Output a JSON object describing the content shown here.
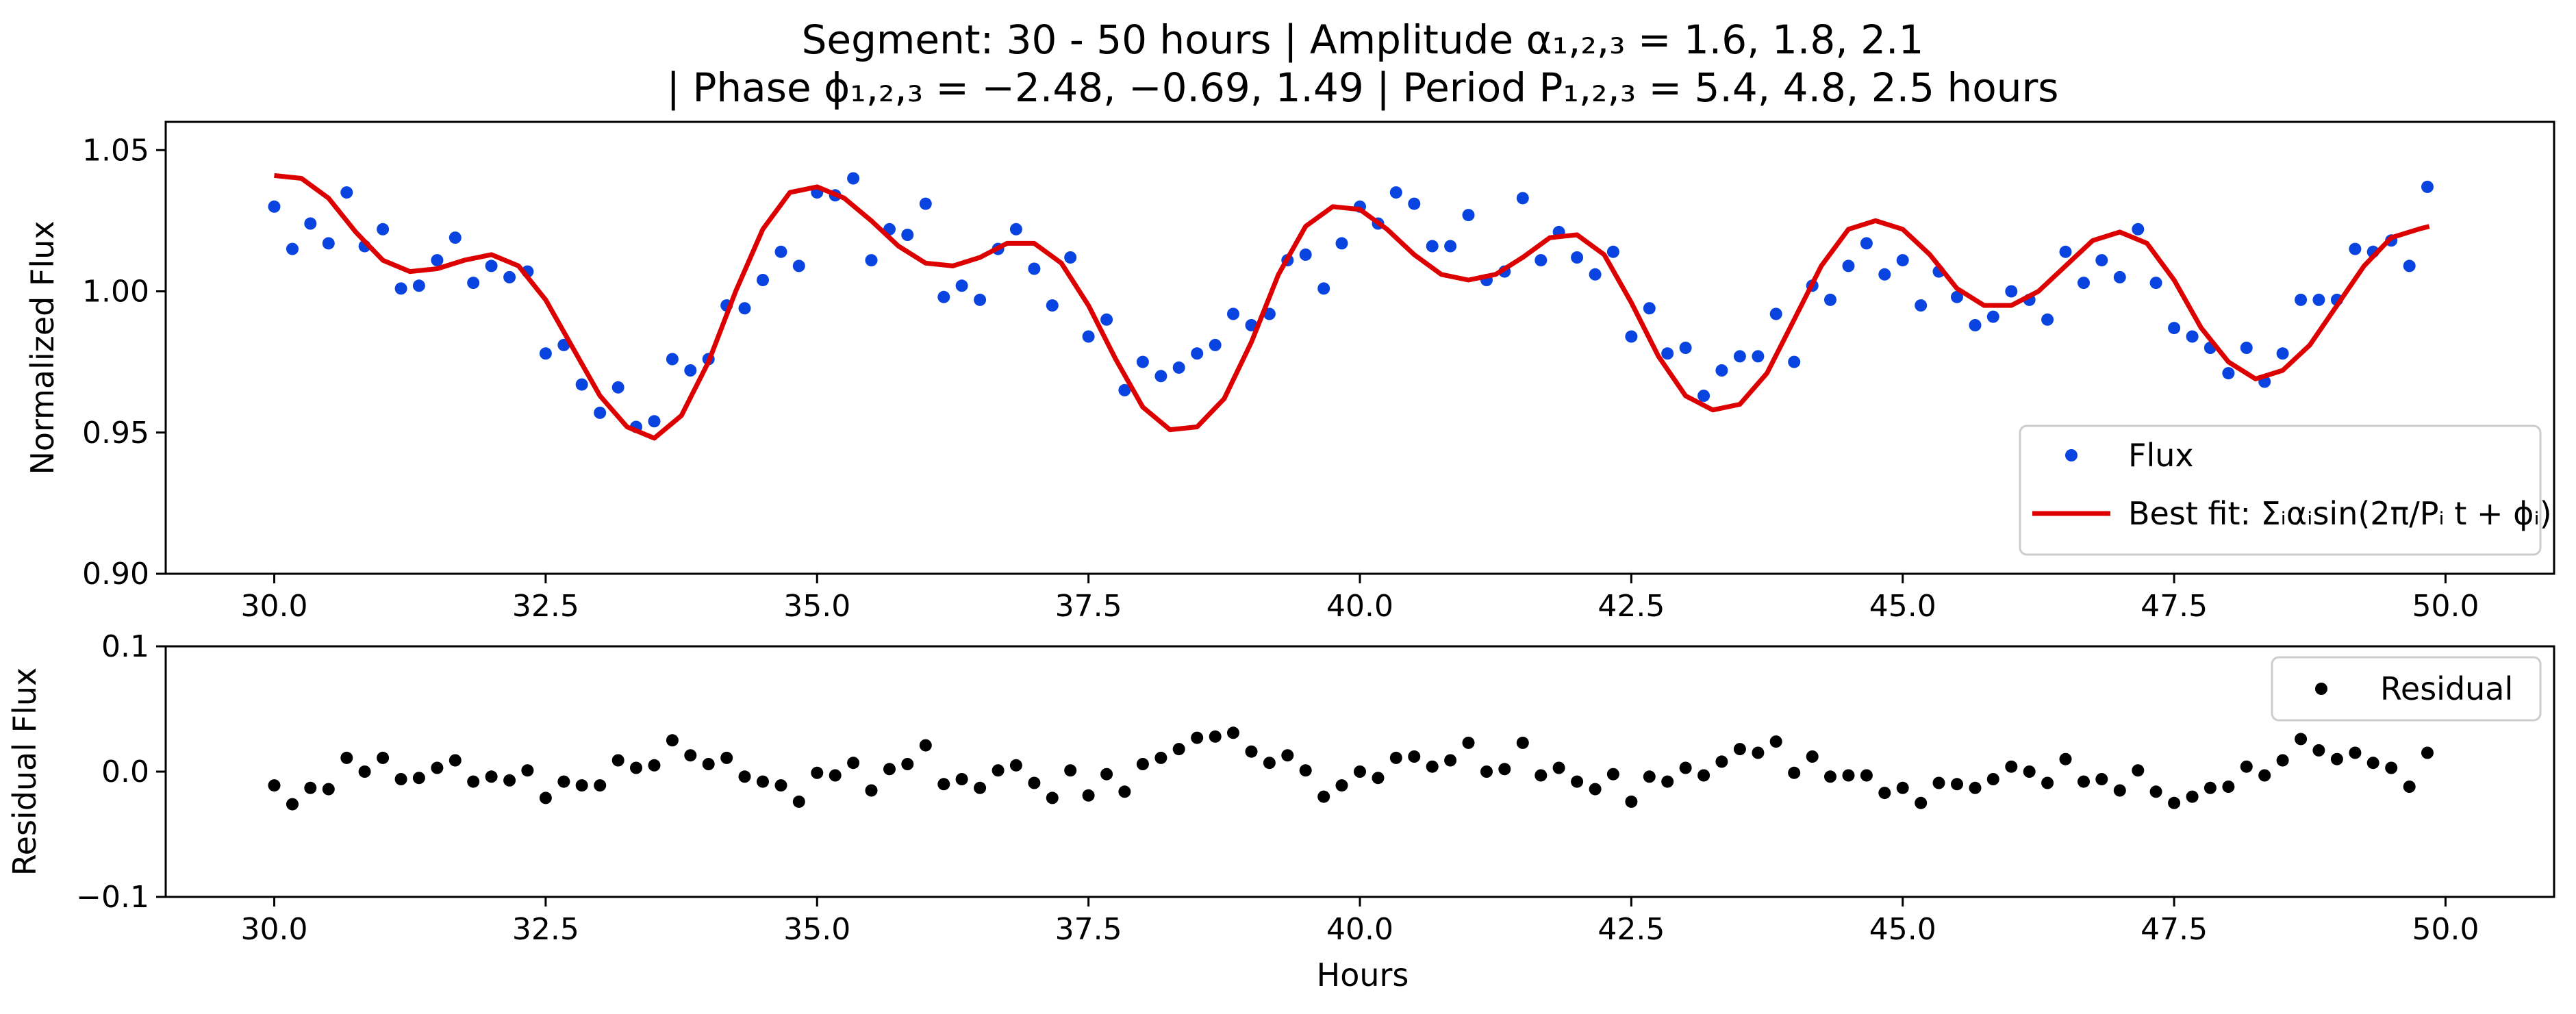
{
  "title_line1": "Segment: 30 - 50 hours  |  Amplitude α₁,₂,₃ = 1.6, 1.8, 2.1",
  "title_line2": "|  Phase ϕ₁,₂,₃ = −2.48, −0.69, 1.49  |  Period P₁,₂,₃ = 5.4, 4.8, 2.5 hours",
  "colors": {
    "flux": "#0a44e0",
    "fit": "#dd0000",
    "residual": "#000000"
  },
  "chart_data": [
    {
      "type": "scatter",
      "ylabel": "Normalized Flux",
      "xlabel": "",
      "xlim": [
        29.0,
        51.0
      ],
      "ylim": [
        0.9,
        1.06
      ],
      "xticks": [
        30.0,
        32.5,
        35.0,
        37.5,
        40.0,
        42.5,
        45.0,
        47.5,
        50.0
      ],
      "xtick_labels": [
        "30.0",
        "32.5",
        "35.0",
        "37.5",
        "40.0",
        "42.5",
        "45.0",
        "47.5",
        "50.0"
      ],
      "yticks": [
        0.9,
        0.95,
        1.0,
        1.05
      ],
      "ytick_labels": [
        "0.90",
        "0.95",
        "1.00",
        "1.05"
      ],
      "grid": false,
      "legend_placement": "lower-right",
      "series": [
        {
          "name": "Flux",
          "kind": "points",
          "x": [
            30.0,
            30.167,
            30.333,
            30.5,
            30.667,
            30.833,
            31.0,
            31.167,
            31.333,
            31.5,
            31.667,
            31.833,
            32.0,
            32.167,
            32.333,
            32.5,
            32.667,
            32.833,
            33.0,
            33.167,
            33.333,
            33.5,
            33.667,
            33.833,
            34.0,
            34.167,
            34.333,
            34.5,
            34.667,
            34.833,
            35.0,
            35.167,
            35.333,
            35.5,
            35.667,
            35.833,
            36.0,
            36.167,
            36.333,
            36.5,
            36.667,
            36.833,
            37.0,
            37.167,
            37.333,
            37.5,
            37.667,
            37.833,
            38.0,
            38.167,
            38.333,
            38.5,
            38.667,
            38.833,
            39.0,
            39.167,
            39.333,
            39.5,
            39.667,
            39.833,
            40.0,
            40.167,
            40.333,
            40.5,
            40.667,
            40.833,
            41.0,
            41.167,
            41.333,
            41.5,
            41.667,
            41.833,
            42.0,
            42.167,
            42.333,
            42.5,
            42.667,
            42.833,
            43.0,
            43.167,
            43.333,
            43.5,
            43.667,
            43.833,
            44.0,
            44.167,
            44.333,
            44.5,
            44.667,
            44.833,
            45.0,
            45.167,
            45.333,
            45.5,
            45.667,
            45.833,
            46.0,
            46.167,
            46.333,
            46.5,
            46.667,
            46.833,
            47.0,
            47.167,
            47.333,
            47.5,
            47.667,
            47.833,
            48.0,
            48.167,
            48.333,
            48.5,
            48.667,
            48.833,
            49.0,
            49.167,
            49.333,
            49.5,
            49.667,
            49.833
          ],
          "y": [
            1.03,
            1.015,
            1.024,
            1.017,
            1.035,
            1.016,
            1.022,
            1.001,
            1.002,
            1.011,
            1.019,
            1.003,
            1.009,
            1.005,
            1.007,
            0.978,
            0.981,
            0.967,
            0.957,
            0.966,
            0.952,
            0.954,
            0.976,
            0.972,
            0.976,
            0.995,
            0.994,
            1.004,
            1.014,
            1.009,
            1.035,
            1.034,
            1.04,
            1.011,
            1.022,
            1.02,
            1.031,
            0.998,
            1.002,
            0.997,
            1.015,
            1.022,
            1.008,
            0.995,
            1.012,
            0.984,
            0.99,
            0.965,
            0.975,
            0.97,
            0.973,
            0.978,
            0.981,
            0.992,
            0.988,
            0.992,
            1.011,
            1.013,
            1.001,
            1.017,
            1.03,
            1.024,
            1.035,
            1.031,
            1.016,
            1.016,
            1.027,
            1.004,
            1.007,
            1.033,
            1.011,
            1.021,
            1.012,
            1.006,
            1.014,
            0.984,
            0.994,
            0.978,
            0.98,
            0.963,
            0.972,
            0.977,
            0.977,
            0.992,
            0.975,
            1.002,
            0.997,
            1.009,
            1.017,
            1.006,
            1.011,
            0.995,
            1.007,
            0.998,
            0.988,
            0.991,
            1.0,
            0.997,
            0.99,
            1.014,
            1.003,
            1.011,
            1.005,
            1.022,
            1.003,
            0.987,
            0.984,
            0.98,
            0.971,
            0.98,
            0.968,
            0.978,
            0.997,
            0.997,
            0.997,
            1.015,
            1.014,
            1.018,
            1.009,
            1.037
          ]
        },
        {
          "name": "Best fit: Σᵢαᵢsin(2π/Pᵢ t + ϕᵢ)",
          "kind": "line",
          "x": [
            30.0,
            30.25,
            30.5,
            30.75,
            31.0,
            31.25,
            31.5,
            31.75,
            32.0,
            32.25,
            32.5,
            32.75,
            33.0,
            33.25,
            33.5,
            33.75,
            34.0,
            34.25,
            34.5,
            34.75,
            35.0,
            35.25,
            35.5,
            35.75,
            36.0,
            36.25,
            36.5,
            36.75,
            37.0,
            37.25,
            37.5,
            37.75,
            38.0,
            38.25,
            38.5,
            38.75,
            39.0,
            39.25,
            39.5,
            39.75,
            40.0,
            40.25,
            40.5,
            40.75,
            41.0,
            41.25,
            41.5,
            41.75,
            42.0,
            42.25,
            42.5,
            42.75,
            43.0,
            43.25,
            43.5,
            43.75,
            44.0,
            44.25,
            44.5,
            44.75,
            45.0,
            45.25,
            45.5,
            45.75,
            46.0,
            46.25,
            46.5,
            46.75,
            47.0,
            47.25,
            47.5,
            47.75,
            48.0,
            48.25,
            48.5,
            48.75,
            49.0,
            49.25,
            49.5,
            49.75,
            49.85
          ],
          "y": [
            1.041,
            1.04,
            1.033,
            1.021,
            1.011,
            1.007,
            1.008,
            1.011,
            1.013,
            1.009,
            0.997,
            0.98,
            0.963,
            0.952,
            0.948,
            0.956,
            0.975,
            1.0,
            1.022,
            1.035,
            1.037,
            1.033,
            1.025,
            1.016,
            1.01,
            1.009,
            1.012,
            1.017,
            1.017,
            1.01,
            0.995,
            0.976,
            0.959,
            0.951,
            0.952,
            0.962,
            0.982,
            1.006,
            1.023,
            1.03,
            1.029,
            1.022,
            1.013,
            1.006,
            1.004,
            1.006,
            1.012,
            1.019,
            1.02,
            1.013,
            0.996,
            0.977,
            0.963,
            0.958,
            0.96,
            0.971,
            0.99,
            1.009,
            1.022,
            1.025,
            1.022,
            1.013,
            1.001,
            0.995,
            0.995,
            1.0,
            1.009,
            1.018,
            1.021,
            1.017,
            1.004,
            0.987,
            0.975,
            0.969,
            0.972,
            0.981,
            0.995,
            1.009,
            1.019,
            1.022,
            1.023
          ]
        }
      ]
    },
    {
      "type": "scatter",
      "ylabel": "Residual Flux",
      "xlabel": "Hours",
      "xlim": [
        29.0,
        51.0
      ],
      "ylim": [
        -0.1,
        0.1
      ],
      "xticks": [
        30.0,
        32.5,
        35.0,
        37.5,
        40.0,
        42.5,
        45.0,
        47.5,
        50.0
      ],
      "xtick_labels": [
        "30.0",
        "32.5",
        "35.0",
        "37.5",
        "40.0",
        "42.5",
        "45.0",
        "47.5",
        "50.0"
      ],
      "yticks": [
        -0.1,
        0.0,
        0.1
      ],
      "ytick_labels": [
        "−0.1",
        "0.0",
        "0.1"
      ],
      "grid": false,
      "legend_placement": "upper-right",
      "series": [
        {
          "name": "Residual",
          "kind": "points",
          "x": [
            30.0,
            30.167,
            30.333,
            30.5,
            30.667,
            30.833,
            31.0,
            31.167,
            31.333,
            31.5,
            31.667,
            31.833,
            32.0,
            32.167,
            32.333,
            32.5,
            32.667,
            32.833,
            33.0,
            33.167,
            33.333,
            33.5,
            33.667,
            33.833,
            34.0,
            34.167,
            34.333,
            34.5,
            34.667,
            34.833,
            35.0,
            35.167,
            35.333,
            35.5,
            35.667,
            35.833,
            36.0,
            36.167,
            36.333,
            36.5,
            36.667,
            36.833,
            37.0,
            37.167,
            37.333,
            37.5,
            37.667,
            37.833,
            38.0,
            38.167,
            38.333,
            38.5,
            38.667,
            38.833,
            39.0,
            39.167,
            39.333,
            39.5,
            39.667,
            39.833,
            40.0,
            40.167,
            40.333,
            40.5,
            40.667,
            40.833,
            41.0,
            41.167,
            41.333,
            41.5,
            41.667,
            41.833,
            42.0,
            42.167,
            42.333,
            42.5,
            42.667,
            42.833,
            43.0,
            43.167,
            43.333,
            43.5,
            43.667,
            43.833,
            44.0,
            44.167,
            44.333,
            44.5,
            44.667,
            44.833,
            45.0,
            45.167,
            45.333,
            45.5,
            45.667,
            45.833,
            46.0,
            46.167,
            46.333,
            46.5,
            46.667,
            46.833,
            47.0,
            47.167,
            47.333,
            47.5,
            47.667,
            47.833,
            48.0,
            48.167,
            48.333,
            48.5,
            48.667,
            48.833,
            49.0,
            49.167,
            49.333,
            49.5,
            49.667,
            49.833
          ],
          "y": [
            -0.011,
            -0.026,
            -0.013,
            -0.014,
            0.011,
            0.0,
            0.011,
            -0.006,
            -0.005,
            0.003,
            0.009,
            -0.008,
            -0.004,
            -0.007,
            0.001,
            -0.021,
            -0.008,
            -0.011,
            -0.011,
            0.009,
            0.003,
            0.005,
            0.025,
            0.013,
            0.006,
            0.011,
            -0.004,
            -0.008,
            -0.011,
            -0.024,
            -0.001,
            -0.003,
            0.007,
            -0.015,
            0.002,
            0.006,
            0.021,
            -0.01,
            -0.006,
            -0.013,
            0.001,
            0.005,
            -0.009,
            -0.021,
            0.001,
            -0.019,
            -0.002,
            -0.016,
            0.006,
            0.011,
            0.018,
            0.027,
            0.028,
            0.031,
            0.016,
            0.007,
            0.013,
            0.001,
            -0.02,
            -0.011,
            0.0,
            -0.005,
            0.011,
            0.012,
            0.004,
            0.009,
            0.023,
            0.0,
            0.002,
            0.023,
            -0.003,
            0.003,
            -0.008,
            -0.014,
            -0.002,
            -0.024,
            -0.004,
            -0.008,
            0.003,
            -0.003,
            0.008,
            0.018,
            0.015,
            0.024,
            -0.001,
            0.012,
            -0.004,
            -0.003,
            -0.003,
            -0.017,
            -0.013,
            -0.025,
            -0.009,
            -0.01,
            -0.013,
            -0.006,
            0.004,
            0.0,
            -0.009,
            0.01,
            -0.008,
            -0.006,
            -0.015,
            0.001,
            -0.016,
            -0.025,
            -0.02,
            -0.013,
            -0.012,
            0.004,
            -0.003,
            0.009,
            0.026,
            0.017,
            0.01,
            0.015,
            0.007,
            0.003,
            -0.012,
            0.015
          ]
        }
      ]
    }
  ]
}
